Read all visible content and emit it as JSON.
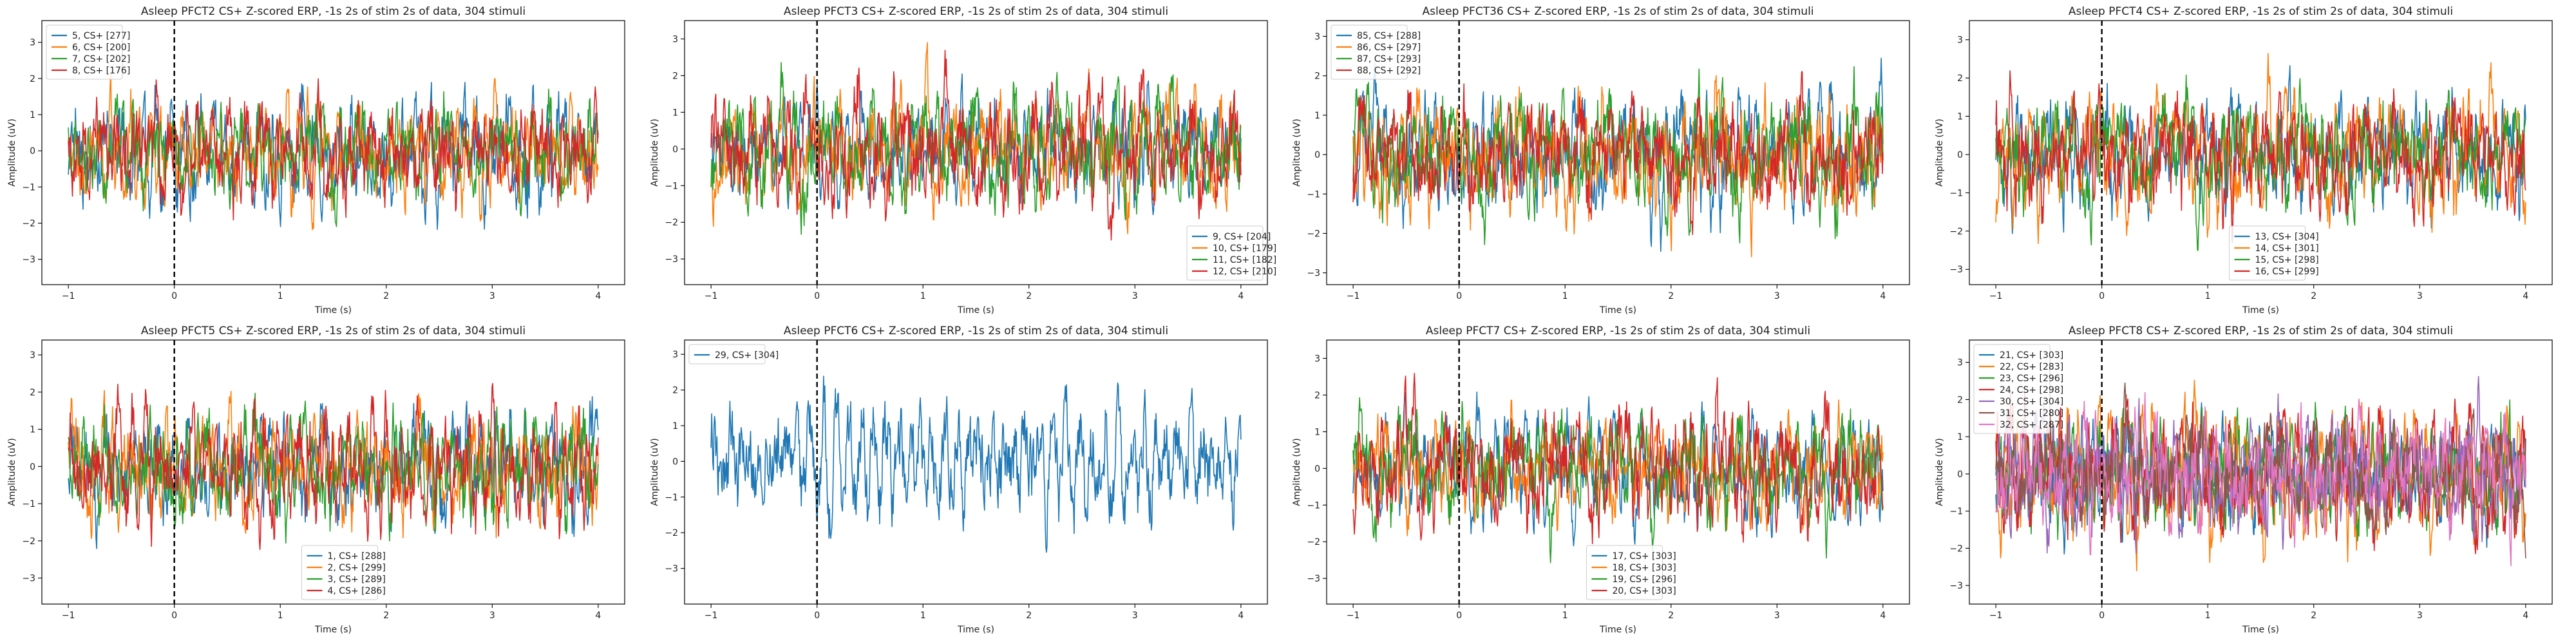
{
  "chart_data": [
    {
      "type": "line",
      "title": "Asleep PFCT2 CS+ Z-scored ERP, -1s 2s of stim 2s of data, 304 stimuli",
      "xlabel": "Time (s)",
      "ylabel": "Amplitude (uV)",
      "xlim": [
        -1.25,
        4.25
      ],
      "ylim": [
        -3.7,
        3.6
      ],
      "xticks": [
        -1,
        0,
        1,
        2,
        3,
        4
      ],
      "yticks": [
        -3,
        -2,
        -1,
        0,
        1,
        2,
        3
      ],
      "stim_line_x": 0,
      "legend_loc": "upper-left",
      "series": [
        {
          "name": "5, CS+ [277]",
          "color": "#1f77b4",
          "amp": 0.95,
          "min": -2.9,
          "max": 3.4,
          "seed": 11
        },
        {
          "name": "6, CS+ [200]",
          "color": "#ff7f0e",
          "amp": 0.85,
          "min": -2.4,
          "max": 2.5,
          "seed": 12
        },
        {
          "name": "7, CS+ [202]",
          "color": "#2ca02c",
          "amp": 0.85,
          "min": -2.5,
          "max": 2.4,
          "seed": 13
        },
        {
          "name": "8, CS+ [176]",
          "color": "#d62728",
          "amp": 0.9,
          "min": -2.6,
          "max": 2.6,
          "seed": 14
        }
      ]
    },
    {
      "type": "line",
      "title": "Asleep PFCT3 CS+ Z-scored ERP, -1s 2s of stim 2s of data, 304 stimuli",
      "xlabel": "Time (s)",
      "ylabel": "Amplitude (uV)",
      "xlim": [
        -1.25,
        4.25
      ],
      "ylim": [
        -3.7,
        3.5
      ],
      "xticks": [
        -1,
        0,
        1,
        2,
        3,
        4
      ],
      "yticks": [
        -3,
        -2,
        -1,
        0,
        1,
        2,
        3
      ],
      "stim_line_x": 0,
      "legend_loc": "lower-right",
      "series": [
        {
          "name": "9, CS+ [204]",
          "color": "#1f77b4",
          "amp": 0.9,
          "min": -2.8,
          "max": 2.7,
          "seed": 21
        },
        {
          "name": "10, CS+ [179]",
          "color": "#ff7f0e",
          "amp": 0.95,
          "min": -3.1,
          "max": 2.9,
          "seed": 22
        },
        {
          "name": "11, CS+ [182]",
          "color": "#2ca02c",
          "amp": 0.95,
          "min": -3.5,
          "max": 2.8,
          "seed": 23
        },
        {
          "name": "12, CS+ [210]",
          "color": "#d62728",
          "amp": 1.0,
          "min": -3.0,
          "max": 3.0,
          "seed": 24
        }
      ]
    },
    {
      "type": "line",
      "title": "Asleep PFCT36 CS+ Z-scored ERP, -1s 2s of stim 2s of data, 304 stimuli",
      "xlabel": "Time (s)",
      "ylabel": "Amplitude (uV)",
      "xlim": [
        -1.25,
        4.25
      ],
      "ylim": [
        -3.3,
        3.4
      ],
      "xticks": [
        -1,
        0,
        1,
        2,
        3,
        4
      ],
      "yticks": [
        -3,
        -2,
        -1,
        0,
        1,
        2,
        3
      ],
      "stim_line_x": 0,
      "legend_loc": "upper-left",
      "series": [
        {
          "name": "85, CS+ [288]",
          "color": "#1f77b4",
          "amp": 0.9,
          "min": -2.8,
          "max": 2.8,
          "seed": 31
        },
        {
          "name": "86, CS+ [297]",
          "color": "#ff7f0e",
          "amp": 1.05,
          "min": -3.0,
          "max": 3.2,
          "seed": 32
        },
        {
          "name": "87, CS+ [293]",
          "color": "#2ca02c",
          "amp": 0.9,
          "min": -2.6,
          "max": 2.7,
          "seed": 33
        },
        {
          "name": "88, CS+ [292]",
          "color": "#d62728",
          "amp": 0.95,
          "min": -3.0,
          "max": 2.9,
          "seed": 34
        }
      ]
    },
    {
      "type": "line",
      "title": "Asleep PFCT4 CS+ Z-scored ERP, -1s 2s of stim 2s of data, 304 stimuli",
      "xlabel": "Time (s)",
      "ylabel": "Amplitude (uV)",
      "xlim": [
        -1.25,
        4.25
      ],
      "ylim": [
        -3.4,
        3.5
      ],
      "xticks": [
        -1,
        0,
        1,
        2,
        3,
        4
      ],
      "yticks": [
        -3,
        -2,
        -1,
        0,
        1,
        2,
        3
      ],
      "stim_line_x": 0,
      "legend_loc": "lower-center",
      "series": [
        {
          "name": "13, CS+ [304]",
          "color": "#1f77b4",
          "amp": 0.95,
          "min": -2.9,
          "max": 3.4,
          "seed": 41
        },
        {
          "name": "14, CS+ [301]",
          "color": "#ff7f0e",
          "amp": 0.95,
          "min": -2.9,
          "max": 3.0,
          "seed": 42
        },
        {
          "name": "15, CS+ [298]",
          "color": "#2ca02c",
          "amp": 0.9,
          "min": -2.8,
          "max": 2.9,
          "seed": 43
        },
        {
          "name": "16, CS+ [299]",
          "color": "#d62728",
          "amp": 0.95,
          "min": -2.9,
          "max": 3.0,
          "seed": 44
        }
      ]
    },
    {
      "type": "line",
      "title": "Asleep PFCT5 CS+ Z-scored ERP, -1s 2s of stim 2s of data, 304 stimuli",
      "xlabel": "Time (s)",
      "ylabel": "Amplitude (uV)",
      "xlim": [
        -1.25,
        4.25
      ],
      "ylim": [
        -3.7,
        3.4
      ],
      "xticks": [
        -1,
        0,
        1,
        2,
        3,
        4
      ],
      "yticks": [
        -3,
        -2,
        -1,
        0,
        1,
        2,
        3
      ],
      "stim_line_x": 0,
      "legend_loc": "lower-center",
      "series": [
        {
          "name": "1, CS+ [288]",
          "color": "#1f77b4",
          "amp": 0.9,
          "min": -3.1,
          "max": 3.0,
          "seed": 51
        },
        {
          "name": "2, CS+ [299]",
          "color": "#ff7f0e",
          "amp": 0.9,
          "min": -3.5,
          "max": 3.0,
          "seed": 52
        },
        {
          "name": "3, CS+ [289]",
          "color": "#2ca02c",
          "amp": 0.9,
          "min": -2.9,
          "max": 3.0,
          "seed": 53
        },
        {
          "name": "4, CS+ [286]",
          "color": "#d62728",
          "amp": 0.95,
          "min": -3.4,
          "max": 3.1,
          "seed": 54
        }
      ]
    },
    {
      "type": "line",
      "title": "Asleep PFCT6 CS+ Z-scored ERP, -1s 2s of stim 2s of data, 304 stimuli",
      "xlabel": "Time (s)",
      "ylabel": "Amplitude (uV)",
      "xlim": [
        -1.25,
        4.25
      ],
      "ylim": [
        -4.0,
        3.4
      ],
      "xticks": [
        -1,
        0,
        1,
        2,
        3,
        4
      ],
      "yticks": [
        -3,
        -2,
        -1,
        0,
        1,
        2,
        3
      ],
      "stim_line_x": 0,
      "legend_loc": "upper-left",
      "series": [
        {
          "name": "29, CS+ [304]",
          "color": "#1f77b4",
          "amp": 1.05,
          "min": -3.7,
          "max": 3.0,
          "seed": 61
        }
      ]
    },
    {
      "type": "line",
      "title": "Asleep PFCT7 CS+ Z-scored ERP, -1s 2s of stim 2s of data, 304 stimuli",
      "xlabel": "Time (s)",
      "ylabel": "Amplitude (uV)",
      "xlim": [
        -1.25,
        4.25
      ],
      "ylim": [
        -3.7,
        3.5
      ],
      "xticks": [
        -1,
        0,
        1,
        2,
        3,
        4
      ],
      "yticks": [
        -3,
        -2,
        -1,
        0,
        1,
        2,
        3
      ],
      "stim_line_x": 0,
      "legend_loc": "lower-center",
      "series": [
        {
          "name": "17, CS+ [303]",
          "color": "#1f77b4",
          "amp": 0.9,
          "min": -3.0,
          "max": 3.1,
          "seed": 71
        },
        {
          "name": "18, CS+ [303]",
          "color": "#ff7f0e",
          "amp": 0.9,
          "min": -3.0,
          "max": 3.2,
          "seed": 72
        },
        {
          "name": "19, CS+ [296]",
          "color": "#2ca02c",
          "amp": 0.9,
          "min": -3.4,
          "max": 3.0,
          "seed": 73
        },
        {
          "name": "20, CS+ [303]",
          "color": "#d62728",
          "amp": 0.95,
          "min": -3.2,
          "max": 3.4,
          "seed": 74
        }
      ]
    },
    {
      "type": "line",
      "title": "Asleep PFCT8 CS+ Z-scored ERP, -1s 2s of stim 2s of data, 304 stimuli",
      "xlabel": "Time (s)",
      "ylabel": "Amplitude (uV)",
      "xlim": [
        -1.25,
        4.25
      ],
      "ylim": [
        -3.5,
        3.6
      ],
      "xticks": [
        -1,
        0,
        1,
        2,
        3,
        4
      ],
      "yticks": [
        -3,
        -2,
        -1,
        0,
        1,
        2,
        3
      ],
      "stim_line_x": 0,
      "legend_loc": "upper-left",
      "series": [
        {
          "name": "21, CS+ [303]",
          "color": "#1f77b4",
          "amp": 0.95,
          "min": -3.0,
          "max": 3.1,
          "seed": 81
        },
        {
          "name": "22, CS+ [283]",
          "color": "#ff7f0e",
          "amp": 1.0,
          "min": -3.3,
          "max": 3.2,
          "seed": 82
        },
        {
          "name": "23, CS+ [296]",
          "color": "#2ca02c",
          "amp": 0.95,
          "min": -3.0,
          "max": 3.0,
          "seed": 83
        },
        {
          "name": "24, CS+ [298]",
          "color": "#d62728",
          "amp": 1.0,
          "min": -3.1,
          "max": 3.4,
          "seed": 84
        },
        {
          "name": "30, CS+ [304]",
          "color": "#9467bd",
          "amp": 0.95,
          "min": -3.0,
          "max": 3.0,
          "seed": 85
        },
        {
          "name": "31, CS+ [280]",
          "color": "#8c564b",
          "amp": 0.95,
          "min": -3.0,
          "max": 3.1,
          "seed": 86
        },
        {
          "name": "32, CS+ [287]",
          "color": "#e377c2",
          "amp": 1.0,
          "min": -3.2,
          "max": 3.2,
          "seed": 87
        }
      ]
    }
  ]
}
